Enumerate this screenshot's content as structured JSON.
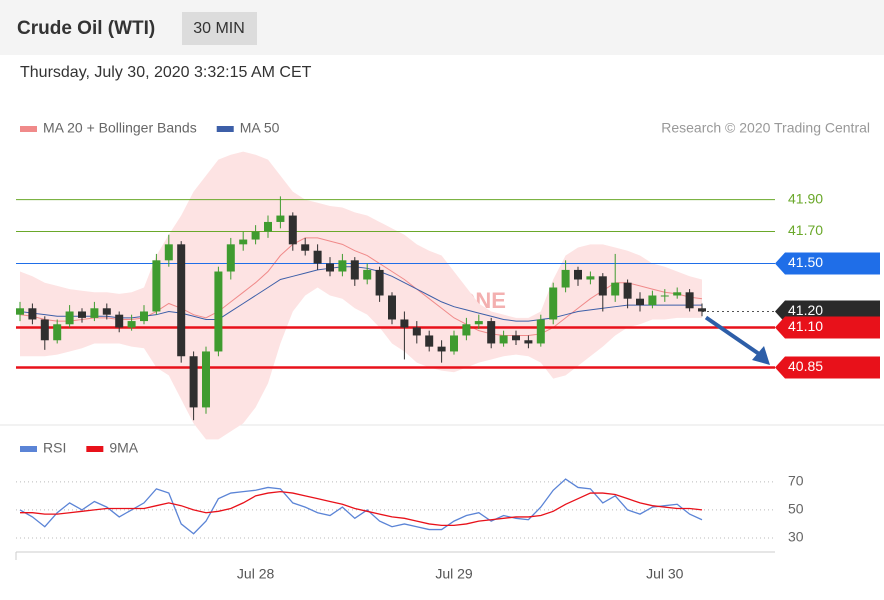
{
  "header": {
    "title": "Crude Oil (WTI)",
    "interval": "30 MIN",
    "timestamp": "Thursday, July 30, 2020 3:32:15 AM CET",
    "credit": "Research © 2020 Trading Central",
    "watermark": "REDSTONE"
  },
  "chart_data": [
    {
      "type": "candlestick",
      "legend": "top-left",
      "up_color": "#3f9b2f",
      "down_color": "#2f2f2f",
      "ylim": [
        40.49,
        42.21
      ],
      "open": [
        41.18,
        41.22,
        41.15,
        41.02,
        41.12,
        41.2,
        41.16,
        41.22,
        41.18,
        41.1,
        41.14,
        41.2,
        41.52,
        41.62,
        40.92,
        40.6,
        40.95,
        41.45,
        41.62,
        41.65,
        41.7,
        41.76,
        41.8,
        41.62,
        41.58,
        41.5,
        41.45,
        41.52,
        41.4,
        41.46,
        41.3,
        41.15,
        41.1,
        41.05,
        40.98,
        40.95,
        41.05,
        41.12,
        41.14,
        41.0,
        41.05,
        41.02,
        41.0,
        41.15,
        41.35,
        41.46,
        41.4,
        41.42,
        41.3,
        41.38,
        41.28,
        41.24,
        41.3,
        41.3,
        41.32,
        41.22
      ],
      "high": [
        41.26,
        41.25,
        41.17,
        41.15,
        41.24,
        41.22,
        41.26,
        41.25,
        41.2,
        41.18,
        41.24,
        41.56,
        41.68,
        41.64,
        40.95,
        40.98,
        41.48,
        41.66,
        41.7,
        41.74,
        41.8,
        41.92,
        41.82,
        41.66,
        41.62,
        41.54,
        41.56,
        41.54,
        41.5,
        41.48,
        41.32,
        41.2,
        41.14,
        41.08,
        41.02,
        41.08,
        41.16,
        41.18,
        41.16,
        41.08,
        41.08,
        41.05,
        41.18,
        41.38,
        41.52,
        41.48,
        41.45,
        41.44,
        41.56,
        41.4,
        41.32,
        41.33,
        41.34,
        41.35,
        41.34,
        41.25
      ],
      "low": [
        41.14,
        41.12,
        40.96,
        41.0,
        41.1,
        41.13,
        41.14,
        41.15,
        41.07,
        41.08,
        41.12,
        41.18,
        41.48,
        40.88,
        40.52,
        40.56,
        40.92,
        41.4,
        41.58,
        41.62,
        41.66,
        41.72,
        41.58,
        41.55,
        41.46,
        41.42,
        41.42,
        41.36,
        41.37,
        41.26,
        41.12,
        40.9,
        41.0,
        40.95,
        40.88,
        40.93,
        41.02,
        41.09,
        40.97,
        40.98,
        40.99,
        40.97,
        40.98,
        41.12,
        41.32,
        41.36,
        41.37,
        41.2,
        41.26,
        41.22,
        41.2,
        41.22,
        41.26,
        41.28,
        41.2,
        41.17
      ],
      "close": [
        41.22,
        41.15,
        41.02,
        41.12,
        41.2,
        41.16,
        41.22,
        41.18,
        41.1,
        41.14,
        41.2,
        41.52,
        41.62,
        40.92,
        40.6,
        40.95,
        41.45,
        41.62,
        41.65,
        41.7,
        41.76,
        41.8,
        41.62,
        41.58,
        41.5,
        41.45,
        41.52,
        41.4,
        41.46,
        41.3,
        41.15,
        41.1,
        41.05,
        40.98,
        40.95,
        41.05,
        41.12,
        41.14,
        41.0,
        41.05,
        41.02,
        41.0,
        41.15,
        41.35,
        41.46,
        41.4,
        41.42,
        41.3,
        41.38,
        41.28,
        41.24,
        41.3,
        41.3,
        41.32,
        41.22,
        41.2
      ],
      "series": [
        {
          "name": "MA 20 + Bollinger Bands",
          "color": "#f08a8a",
          "band_color": "#fde3e3",
          "values": [
            41.18,
            41.17,
            41.15,
            41.14,
            41.14,
            41.15,
            41.16,
            41.16,
            41.15,
            41.15,
            41.16,
            41.2,
            41.25,
            41.22,
            41.18,
            41.16,
            41.2,
            41.26,
            41.32,
            41.38,
            41.45,
            41.55,
            41.62,
            41.66,
            41.66,
            41.64,
            41.62,
            41.58,
            41.55,
            41.5,
            41.45,
            41.4,
            41.34,
            41.28,
            41.22,
            41.16,
            41.12,
            41.08,
            41.06,
            41.05,
            41.05,
            41.05,
            41.06,
            41.1,
            41.16,
            41.22,
            41.28,
            41.33,
            41.38,
            41.38,
            41.36,
            41.34,
            41.32,
            41.31,
            41.29,
            41.28
          ],
          "upper": [
            41.45,
            41.42,
            41.38,
            41.36,
            41.34,
            41.33,
            41.32,
            41.32,
            41.31,
            41.32,
            41.35,
            41.55,
            41.68,
            41.8,
            41.95,
            42.05,
            42.15,
            42.18,
            42.2,
            42.18,
            42.15,
            42.05,
            41.95,
            41.9,
            41.88,
            41.86,
            41.85,
            41.82,
            41.8,
            41.76,
            41.72,
            41.68,
            41.62,
            41.58,
            41.55,
            41.45,
            41.35,
            41.25,
            41.2,
            41.18,
            41.16,
            41.16,
            41.2,
            41.4,
            41.55,
            41.6,
            41.62,
            41.62,
            41.6,
            41.58,
            41.55,
            41.5,
            41.48,
            41.45,
            41.42,
            41.4
          ],
          "lower": [
            40.92,
            40.92,
            40.92,
            40.93,
            40.95,
            40.97,
            41.0,
            41.0,
            41.0,
            40.98,
            40.97,
            40.85,
            40.8,
            40.65,
            40.5,
            40.4,
            40.4,
            40.45,
            40.5,
            40.6,
            40.75,
            41.0,
            41.2,
            41.3,
            41.35,
            41.3,
            41.28,
            41.22,
            41.18,
            41.1,
            41.0,
            40.95,
            40.88,
            40.85,
            40.83,
            40.82,
            40.85,
            40.88,
            40.9,
            40.92,
            40.93,
            40.92,
            40.88,
            40.78,
            40.8,
            40.86,
            40.92,
            40.98,
            41.05,
            41.1,
            41.12,
            41.15,
            41.15,
            41.16,
            41.16,
            41.16
          ]
        },
        {
          "name": "MA 50",
          "color": "#3d5fa8",
          "values": [
            41.2,
            41.19,
            41.18,
            41.17,
            41.17,
            41.17,
            41.17,
            41.17,
            41.16,
            41.16,
            41.17,
            41.18,
            41.2,
            41.19,
            41.17,
            41.15,
            41.15,
            41.2,
            41.25,
            41.3,
            41.35,
            41.4,
            41.42,
            41.44,
            41.46,
            41.47,
            41.48,
            41.48,
            41.47,
            41.45,
            41.42,
            41.38,
            41.34,
            41.3,
            41.26,
            41.23,
            41.21,
            41.19,
            41.17,
            41.15,
            41.14,
            41.14,
            41.15,
            41.16,
            41.18,
            41.2,
            41.21,
            41.22,
            41.23,
            41.24,
            41.24,
            41.24,
            41.24,
            41.24,
            41.24,
            41.24
          ]
        }
      ],
      "levels": [
        {
          "value": 41.9,
          "label": "41.90",
          "color": "#6aa82a",
          "style": "thin",
          "badge": false
        },
        {
          "value": 41.7,
          "label": "41.70",
          "color": "#6aa82a",
          "style": "thin",
          "badge": false
        },
        {
          "value": 41.5,
          "label": "41.50",
          "color": "#1f6ee8",
          "style": "thin",
          "badge": true
        },
        {
          "value": 41.2,
          "label": "41.20",
          "color": "#2a2a2a",
          "style": "dotted",
          "badge": true
        },
        {
          "value": 41.1,
          "label": "41.10",
          "color": "#e8111a",
          "style": "thick",
          "badge": true
        },
        {
          "value": 40.85,
          "label": "40.85",
          "color": "#e8111a",
          "style": "thick",
          "badge": true
        }
      ]
    },
    {
      "type": "line",
      "legend": "top-left",
      "ylim": [
        20,
        82
      ],
      "yticks": [
        70,
        50,
        30
      ],
      "grid": true,
      "categories": [
        null,
        null,
        null,
        null,
        null,
        null,
        null,
        null,
        null,
        null,
        null,
        null,
        null,
        null,
        null,
        null,
        null,
        null,
        null,
        "Jul 28",
        null,
        null,
        null,
        null,
        null,
        null,
        null,
        null,
        null,
        null,
        null,
        null,
        null,
        null,
        null,
        "Jul 29",
        null,
        null,
        null,
        null,
        null,
        null,
        null,
        null,
        null,
        null,
        null,
        null,
        null,
        null,
        null,
        null,
        "Jul 30",
        null,
        null,
        null
      ],
      "series": [
        {
          "name": "RSI",
          "color": "#5b84d6",
          "values": [
            50,
            45,
            38,
            48,
            55,
            50,
            56,
            52,
            45,
            50,
            55,
            65,
            62,
            40,
            33,
            42,
            58,
            62,
            63,
            64,
            66,
            65,
            55,
            52,
            48,
            46,
            52,
            44,
            50,
            42,
            38,
            40,
            38,
            36,
            36,
            42,
            46,
            48,
            42,
            46,
            44,
            43,
            52,
            64,
            72,
            66,
            65,
            55,
            60,
            50,
            47,
            52,
            53,
            54,
            47,
            43
          ]
        },
        {
          "name": "9MA",
          "color": "#e8111a",
          "values": [
            48,
            48,
            47,
            47,
            48,
            49,
            50,
            51,
            51,
            51,
            51,
            53,
            55,
            53,
            50,
            48,
            49,
            51,
            55,
            60,
            62,
            63,
            62,
            60,
            58,
            56,
            54,
            51,
            49,
            47,
            45,
            44,
            42,
            40,
            39,
            39,
            40,
            42,
            43,
            44,
            45,
            45,
            46,
            49,
            54,
            58,
            62,
            62,
            61,
            58,
            55,
            53,
            52,
            51,
            51,
            50
          ]
        }
      ]
    }
  ]
}
